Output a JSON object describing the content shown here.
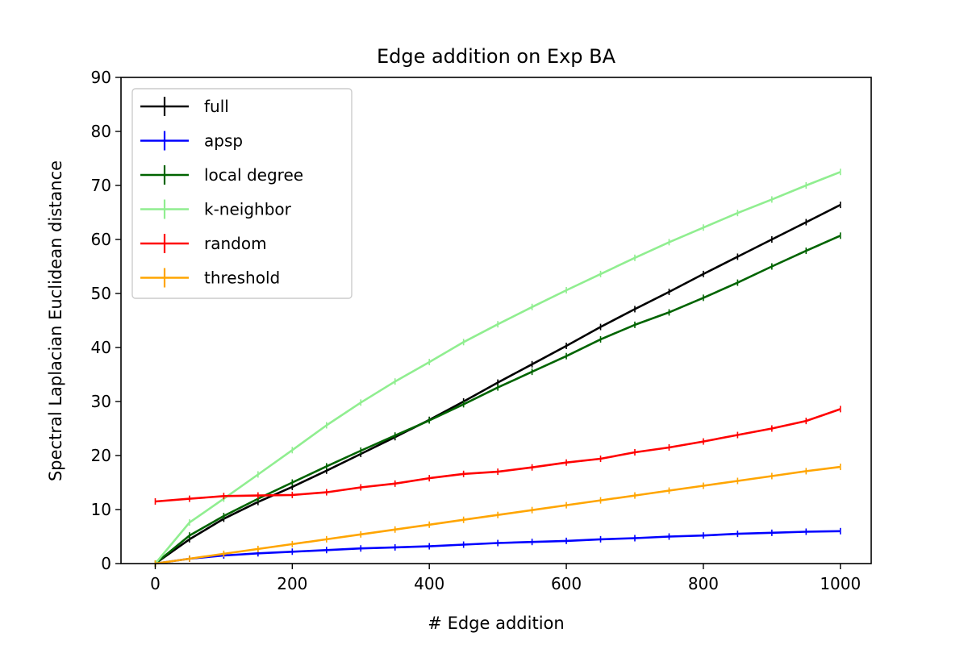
{
  "chart_data": {
    "type": "line",
    "title": "Edge addition on Exp BA",
    "xlabel": "# Edge addition",
    "ylabel": "Spectral Laplacian Euclidean distance",
    "xlim": [
      -50,
      1045
    ],
    "ylim": [
      0,
      90
    ],
    "xticks": [
      0,
      200,
      400,
      600,
      800,
      1000
    ],
    "yticks": [
      0,
      10,
      20,
      30,
      40,
      50,
      60,
      70,
      80,
      90
    ],
    "grid": false,
    "legend_position": "upper-left",
    "error_bars": true,
    "x": [
      0,
      50,
      100,
      150,
      200,
      250,
      300,
      350,
      400,
      450,
      500,
      550,
      600,
      650,
      700,
      750,
      800,
      850,
      900,
      950,
      1000
    ],
    "series": [
      {
        "name": "full",
        "color": "#000000",
        "values": [
          0,
          4.5,
          8.3,
          11.4,
          14.2,
          17.2,
          20.3,
          23.4,
          26.6,
          30.0,
          33.5,
          36.9,
          40.3,
          43.8,
          47.1,
          50.3,
          53.6,
          56.8,
          60.0,
          63.2,
          66.4
        ]
      },
      {
        "name": "apsp",
        "color": "#0000ff",
        "values": [
          0,
          0.9,
          1.5,
          1.9,
          2.2,
          2.5,
          2.8,
          3.0,
          3.2,
          3.5,
          3.8,
          4.0,
          4.2,
          4.5,
          4.7,
          5.0,
          5.2,
          5.5,
          5.7,
          5.9,
          6.0
        ]
      },
      {
        "name": "local degree",
        "color": "#006400",
        "values": [
          0,
          5.2,
          8.8,
          12.0,
          15.0,
          18.0,
          20.9,
          23.7,
          26.5,
          29.5,
          32.6,
          35.5,
          38.4,
          41.5,
          44.2,
          46.5,
          49.2,
          52.0,
          55.0,
          57.9,
          60.7
        ]
      },
      {
        "name": "k-neighbor",
        "color": "#90ee90",
        "values": [
          0,
          7.6,
          12.0,
          16.5,
          21.0,
          25.6,
          29.8,
          33.7,
          37.3,
          41.0,
          44.3,
          47.5,
          50.6,
          53.6,
          56.6,
          59.5,
          62.2,
          64.9,
          67.4,
          70.0,
          72.5
        ]
      },
      {
        "name": "random",
        "color": "#ff0000",
        "values": [
          11.5,
          12.0,
          12.5,
          12.6,
          12.7,
          13.2,
          14.1,
          14.8,
          15.8,
          16.6,
          17.0,
          17.8,
          18.7,
          19.4,
          20.6,
          21.5,
          22.6,
          23.8,
          25.0,
          26.4,
          28.6
        ]
      },
      {
        "name": "threshold",
        "color": "#ffa500",
        "values": [
          0,
          0.9,
          1.8,
          2.7,
          3.6,
          4.5,
          5.4,
          6.3,
          7.2,
          8.1,
          9.0,
          9.9,
          10.8,
          11.7,
          12.6,
          13.5,
          14.4,
          15.3,
          16.2,
          17.1,
          17.9
        ]
      }
    ]
  }
}
